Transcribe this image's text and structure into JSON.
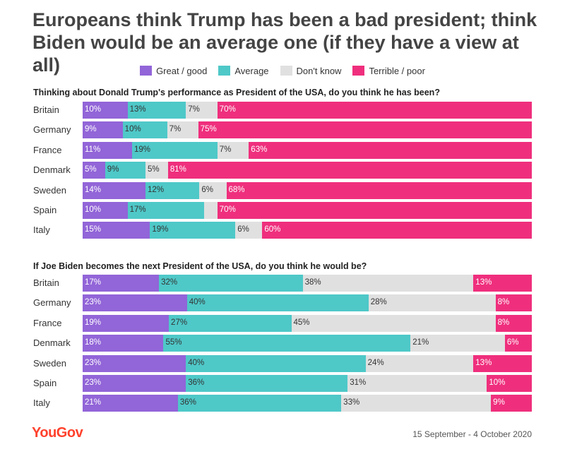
{
  "title": "Europeans think Trump has been a bad president; think Biden would be an average one (if they have a view at all)",
  "colors": {
    "great_good": "#9265d8",
    "average": "#4fc8c8",
    "dont_know": "#e0e0e0",
    "terrible_poor": "#ef2f7d"
  },
  "legend": [
    {
      "label": "Great / good",
      "color": "#9265d8"
    },
    {
      "label": "Average",
      "color": "#4fc8c8"
    },
    {
      "label": "Don't know",
      "color": "#e0e0e0"
    },
    {
      "label": "Terrible / poor",
      "color": "#ef2f7d"
    }
  ],
  "chart_data": [
    {
      "type": "bar",
      "stacked": true,
      "orientation": "horizontal",
      "title": "Thinking about Donald Trump's performance as President of the USA, do you think he has been?",
      "categories": [
        "Britain",
        "Germany",
        "France",
        "Denmark",
        "Sweden",
        "Spain",
        "Italy"
      ],
      "series": [
        {
          "name": "Great / good",
          "values": [
            10,
            9,
            11,
            5,
            14,
            10,
            15
          ]
        },
        {
          "name": "Average",
          "values": [
            13,
            10,
            19,
            9,
            12,
            17,
            19
          ]
        },
        {
          "name": "Don't know",
          "values": [
            7,
            7,
            7,
            5,
            6,
            3,
            6
          ]
        },
        {
          "name": "Terrible / poor",
          "values": [
            70,
            75,
            63,
            81,
            68,
            70,
            60
          ]
        }
      ],
      "labels": [
        [
          "10%",
          "13%",
          "7%",
          "70%"
        ],
        [
          "9%",
          "10%",
          "7%",
          "75%"
        ],
        [
          "11%",
          "19%",
          "7%",
          "63%"
        ],
        [
          "5%",
          "9%",
          "5%",
          "81%"
        ],
        [
          "14%",
          "12%",
          "6%",
          "68%"
        ],
        [
          "10%",
          "17%",
          "",
          "70%"
        ],
        [
          "15%",
          "19%",
          "6%",
          "60%"
        ]
      ]
    },
    {
      "type": "bar",
      "stacked": true,
      "orientation": "horizontal",
      "title": "If Joe Biden becomes the next President of the USA, do you think he would be?",
      "categories": [
        "Britain",
        "Germany",
        "France",
        "Denmark",
        "Sweden",
        "Spain",
        "Italy"
      ],
      "series": [
        {
          "name": "Great / good",
          "values": [
            17,
            23,
            19,
            18,
            23,
            23,
            21
          ]
        },
        {
          "name": "Average",
          "values": [
            32,
            40,
            27,
            55,
            40,
            36,
            36
          ]
        },
        {
          "name": "Don't know",
          "values": [
            38,
            28,
            45,
            21,
            24,
            31,
            33
          ]
        },
        {
          "name": "Terrible / poor",
          "values": [
            13,
            8,
            8,
            6,
            13,
            10,
            9
          ]
        }
      ],
      "labels": [
        [
          "17%",
          "32%",
          "38%",
          "13%"
        ],
        [
          "23%",
          "40%",
          "28%",
          "8%"
        ],
        [
          "19%",
          "27%",
          "45%",
          "8%"
        ],
        [
          "18%",
          "55%",
          "21%",
          "6%"
        ],
        [
          "23%",
          "40%",
          "24%",
          "13%"
        ],
        [
          "23%",
          "36%",
          "31%",
          "10%"
        ],
        [
          "21%",
          "36%",
          "33%",
          "9%"
        ]
      ]
    }
  ],
  "footer": {
    "logo": "YouGov",
    "date": "15 September - 4 October 2020"
  }
}
